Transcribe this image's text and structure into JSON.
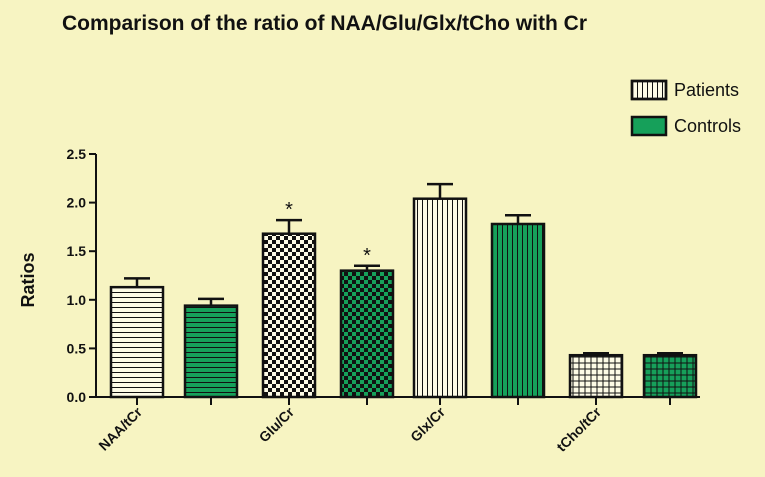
{
  "chart_data": {
    "type": "bar",
    "title": "Comparison of the ratio of NAA/Glu/Glx/tCho with Cr",
    "ylabel": "Ratios",
    "xlabel": "",
    "ylim": [
      0,
      2.5
    ],
    "yticks": [
      "0.0",
      "0.5",
      "1.0",
      "1.5",
      "2.0",
      "2.5"
    ],
    "categories": [
      "NAA/tCr",
      "Glu/Cr",
      "Glx/Cr",
      "tCho/tCr"
    ],
    "legend_position": "top-right",
    "series": [
      {
        "name": "Patients",
        "color": "#fdfbe6",
        "values": [
          1.13,
          1.68,
          2.04,
          0.43
        ],
        "errors": [
          0.09,
          0.14,
          0.15,
          0.02
        ],
        "patterns": [
          "hlines",
          "checker",
          "vlines",
          "grid"
        ]
      },
      {
        "name": "Controls",
        "color": "#16a05a",
        "values": [
          0.94,
          1.3,
          1.78,
          0.43
        ],
        "errors": [
          0.07,
          0.05,
          0.09,
          0.02
        ],
        "patterns": [
          "hlines",
          "checker",
          "vlines",
          "grid"
        ]
      }
    ],
    "annotations": [
      {
        "category": "Glu/Cr",
        "series": "Patients",
        "text": "*"
      },
      {
        "category": "Glu/Cr",
        "series": "Controls",
        "text": "*"
      }
    ]
  }
}
